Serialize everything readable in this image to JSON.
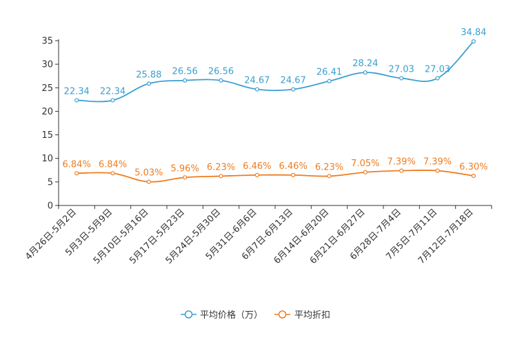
{
  "chart_data": {
    "type": "line",
    "categories": [
      "4月26日-5月2日",
      "5月3日-5月9日",
      "5月10日-5月16日",
      "5月17日-5月23日",
      "5月24日-5月30日",
      "5月31日-6月6日",
      "6月7日-6月13日",
      "6月14日-6月20日",
      "6月21日-6月27日",
      "6月28日-7月4日",
      "7月5日-7月11日",
      "7月12日-7月18日"
    ],
    "series": [
      {
        "name": "平均价格（万）",
        "color": "#3a9fd1",
        "values": [
          22.34,
          22.34,
          25.88,
          26.56,
          26.56,
          24.67,
          24.67,
          26.41,
          28.24,
          27.03,
          27.03,
          34.84
        ],
        "labels": [
          "22.34",
          "22.34",
          "25.88",
          "26.56",
          "26.56",
          "24.67",
          "24.67",
          "26.41",
          "28.24",
          "27.03",
          "27.03",
          "34.84"
        ]
      },
      {
        "name": "平均折扣",
        "color": "#f07c1e",
        "values": [
          6.84,
          6.84,
          5.03,
          5.96,
          6.23,
          6.46,
          6.46,
          6.23,
          7.05,
          7.39,
          7.39,
          6.3
        ],
        "labels": [
          "6.84%",
          "6.84%",
          "5.03%",
          "5.96%",
          "6.23%",
          "6.46%",
          "6.46%",
          "6.23%",
          "7.05%",
          "7.39%",
          "7.39%",
          "6.30%"
        ]
      }
    ],
    "ylim": [
      0,
      35
    ],
    "yticks": [
      "0",
      "5",
      "10",
      "15",
      "20",
      "25",
      "30",
      "35"
    ],
    "title": "",
    "xlabel": "",
    "ylabel": "",
    "legend_position": "bottom-center"
  }
}
